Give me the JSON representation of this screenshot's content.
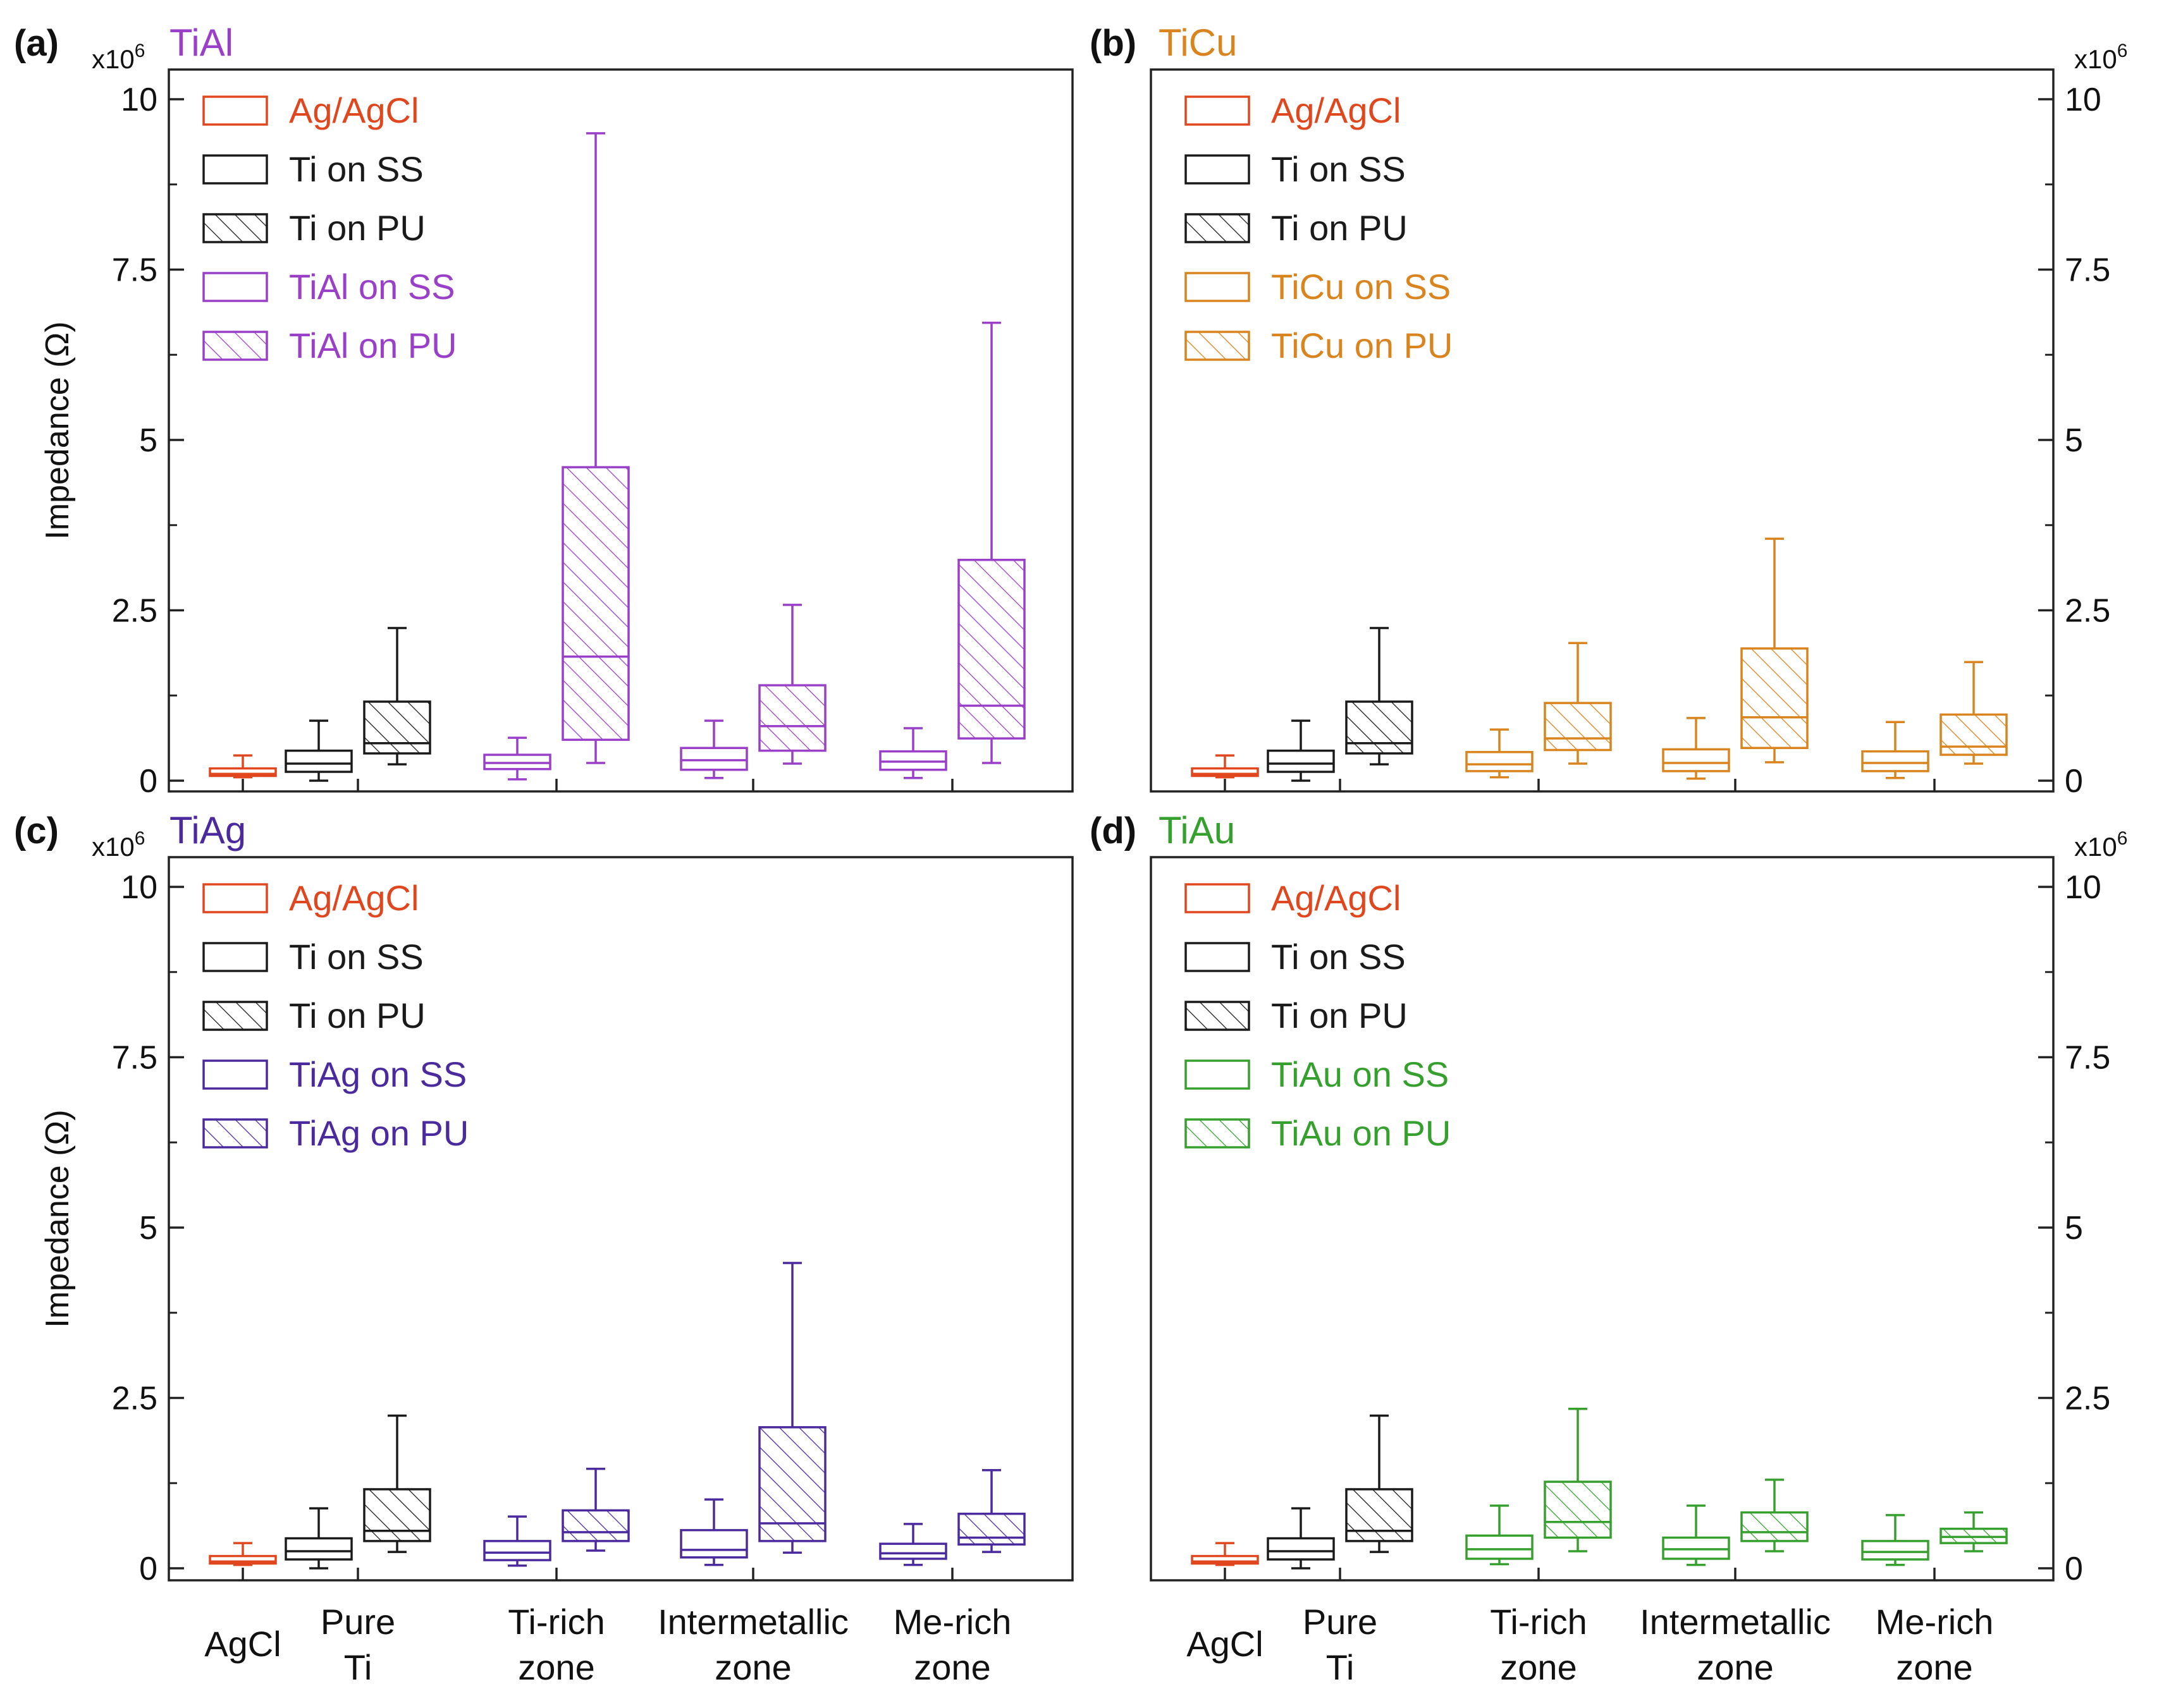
{
  "figure": {
    "y_axis_label": "Impedance (Ω)",
    "exponent_base": "x10",
    "exponent_power": "6",
    "y_ticks": [
      0,
      2.5,
      5,
      7.5,
      10
    ],
    "y_tick_labels": [
      "0",
      "2.5",
      "5",
      "7.5",
      "10"
    ],
    "x_categories": [
      {
        "id": "agcl",
        "lines": [
          "AgCl"
        ]
      },
      {
        "id": "pure_ti",
        "lines": [
          "Pure",
          "Ti"
        ]
      },
      {
        "id": "ti_rich",
        "lines": [
          "Ti-rich",
          "zone"
        ]
      },
      {
        "id": "intermetallic",
        "lines": [
          "Intermetallic",
          "zone"
        ]
      },
      {
        "id": "me_rich",
        "lines": [
          "Me-rich",
          "zone"
        ]
      }
    ],
    "colors": {
      "agcl": "#E0471E",
      "ti": "#1a1a1a",
      "TiAl": "#9A3FC8",
      "TiCu": "#D9841E",
      "TiAg": "#4B2A9E",
      "TiAu": "#36A02E"
    }
  },
  "chart_data": [
    {
      "panel": "a",
      "panel_label": "(a)",
      "title": "TiAl",
      "metal": "TiAl",
      "type": "box",
      "ylabel": "Impedance (Ω)",
      "y_scale": "x10^6",
      "ylim": [
        -0.2,
        10.6
      ],
      "legend": [
        "Ag/AgCl",
        "Ti on SS",
        "Ti on PU",
        "TiAl on SS",
        "TiAl on PU"
      ],
      "boxes": [
        {
          "series": "Ag/AgCl",
          "category": "AgCl",
          "min": 0.05,
          "q1": 0.07,
          "median": 0.1,
          "q3": 0.18,
          "max": 0.37
        },
        {
          "series": "Ti on SS",
          "category": "Pure Ti",
          "min": 0.0,
          "q1": 0.13,
          "median": 0.25,
          "q3": 0.44,
          "max": 0.88
        },
        {
          "series": "Ti on PU",
          "category": "Pure Ti",
          "min": 0.24,
          "q1": 0.4,
          "median": 0.55,
          "q3": 1.16,
          "max": 2.24
        },
        {
          "series": "TiAl on SS",
          "category": "Ti-rich zone",
          "min": 0.02,
          "q1": 0.17,
          "median": 0.26,
          "q3": 0.38,
          "max": 0.63
        },
        {
          "series": "TiAl on PU",
          "category": "Ti-rich zone",
          "min": 0.26,
          "q1": 0.6,
          "median": 1.82,
          "q3": 4.6,
          "max": 9.5
        },
        {
          "series": "TiAl on SS",
          "category": "Intermetallic zone",
          "min": 0.04,
          "q1": 0.16,
          "median": 0.3,
          "q3": 0.48,
          "max": 0.88
        },
        {
          "series": "TiAl on PU",
          "category": "Intermetallic zone",
          "min": 0.25,
          "q1": 0.44,
          "median": 0.8,
          "q3": 1.4,
          "max": 2.58
        },
        {
          "series": "TiAl on SS",
          "category": "Me-rich zone",
          "min": 0.04,
          "q1": 0.16,
          "median": 0.28,
          "q3": 0.43,
          "max": 0.77
        },
        {
          "series": "TiAl on PU",
          "category": "Me-rich zone",
          "min": 0.26,
          "q1": 0.62,
          "median": 1.1,
          "q3": 3.24,
          "max": 6.72
        }
      ]
    },
    {
      "panel": "b",
      "panel_label": "(b)",
      "title": "TiCu",
      "metal": "TiCu",
      "type": "box",
      "ylabel": "Impedance (Ω)",
      "y_scale": "x10^6",
      "ylim": [
        -0.2,
        10.6
      ],
      "legend": [
        "Ag/AgCl",
        "Ti on SS",
        "Ti on PU",
        "TiCu on SS",
        "TiCu on PU"
      ],
      "boxes": [
        {
          "series": "Ag/AgCl",
          "category": "AgCl",
          "min": 0.05,
          "q1": 0.07,
          "median": 0.1,
          "q3": 0.18,
          "max": 0.37
        },
        {
          "series": "Ti on SS",
          "category": "Pure Ti",
          "min": 0.0,
          "q1": 0.13,
          "median": 0.25,
          "q3": 0.44,
          "max": 0.88
        },
        {
          "series": "Ti on PU",
          "category": "Pure Ti",
          "min": 0.24,
          "q1": 0.4,
          "median": 0.55,
          "q3": 1.16,
          "max": 2.24
        },
        {
          "series": "TiCu on SS",
          "category": "Ti-rich zone",
          "min": 0.05,
          "q1": 0.14,
          "median": 0.24,
          "q3": 0.42,
          "max": 0.75
        },
        {
          "series": "TiCu on PU",
          "category": "Ti-rich zone",
          "min": 0.25,
          "q1": 0.45,
          "median": 0.62,
          "q3": 1.14,
          "max": 2.02
        },
        {
          "series": "TiCu on SS",
          "category": "Intermetallic zone",
          "min": 0.03,
          "q1": 0.14,
          "median": 0.26,
          "q3": 0.46,
          "max": 0.92
        },
        {
          "series": "TiCu on PU",
          "category": "Intermetallic zone",
          "min": 0.27,
          "q1": 0.48,
          "median": 0.93,
          "q3": 1.94,
          "max": 3.55
        },
        {
          "series": "TiCu on SS",
          "category": "Me-rich zone",
          "min": 0.04,
          "q1": 0.14,
          "median": 0.26,
          "q3": 0.43,
          "max": 0.86
        },
        {
          "series": "TiCu on PU",
          "category": "Me-rich zone",
          "min": 0.25,
          "q1": 0.38,
          "median": 0.5,
          "q3": 0.97,
          "max": 1.74
        }
      ]
    },
    {
      "panel": "c",
      "panel_label": "(c)",
      "title": "TiAg",
      "metal": "TiAg",
      "type": "box",
      "ylabel": "Impedance (Ω)",
      "y_scale": "x10^6",
      "ylim": [
        -0.2,
        10.6
      ],
      "legend": [
        "Ag/AgCl",
        "Ti on SS",
        "Ti on PU",
        "TiAg on SS",
        "TiAg on PU"
      ],
      "boxes": [
        {
          "series": "Ag/AgCl",
          "category": "AgCl",
          "min": 0.05,
          "q1": 0.07,
          "median": 0.1,
          "q3": 0.18,
          "max": 0.37
        },
        {
          "series": "Ti on SS",
          "category": "Pure Ti",
          "min": 0.0,
          "q1": 0.13,
          "median": 0.25,
          "q3": 0.44,
          "max": 0.88
        },
        {
          "series": "Ti on PU",
          "category": "Pure Ti",
          "min": 0.24,
          "q1": 0.4,
          "median": 0.55,
          "q3": 1.16,
          "max": 2.24
        },
        {
          "series": "TiAg on SS",
          "category": "Ti-rich zone",
          "min": 0.04,
          "q1": 0.12,
          "median": 0.23,
          "q3": 0.4,
          "max": 0.76
        },
        {
          "series": "TiAg on PU",
          "category": "Ti-rich zone",
          "min": 0.26,
          "q1": 0.4,
          "median": 0.53,
          "q3": 0.85,
          "max": 1.46
        },
        {
          "series": "TiAg on SS",
          "category": "Intermetallic zone",
          "min": 0.05,
          "q1": 0.16,
          "median": 0.27,
          "q3": 0.56,
          "max": 1.01
        },
        {
          "series": "TiAg on PU",
          "category": "Intermetallic zone",
          "min": 0.23,
          "q1": 0.4,
          "median": 0.66,
          "q3": 2.07,
          "max": 4.48
        },
        {
          "series": "TiAg on SS",
          "category": "Me-rich zone",
          "min": 0.05,
          "q1": 0.14,
          "median": 0.22,
          "q3": 0.36,
          "max": 0.65
        },
        {
          "series": "TiAg on PU",
          "category": "Me-rich zone",
          "min": 0.24,
          "q1": 0.35,
          "median": 0.45,
          "q3": 0.8,
          "max": 1.44
        }
      ]
    },
    {
      "panel": "d",
      "panel_label": "(d)",
      "title": "TiAu",
      "metal": "TiAu",
      "type": "box",
      "ylabel": "Impedance (Ω)",
      "y_scale": "x10^6",
      "ylim": [
        -0.2,
        10.6
      ],
      "legend": [
        "Ag/AgCl",
        "Ti on SS",
        "Ti on PU",
        "TiAu on SS",
        "TiAu on PU"
      ],
      "boxes": [
        {
          "series": "Ag/AgCl",
          "category": "AgCl",
          "min": 0.05,
          "q1": 0.07,
          "median": 0.1,
          "q3": 0.18,
          "max": 0.37
        },
        {
          "series": "Ti on SS",
          "category": "Pure Ti",
          "min": 0.0,
          "q1": 0.13,
          "median": 0.25,
          "q3": 0.44,
          "max": 0.88
        },
        {
          "series": "Ti on PU",
          "category": "Pure Ti",
          "min": 0.24,
          "q1": 0.4,
          "median": 0.55,
          "q3": 1.16,
          "max": 2.24
        },
        {
          "series": "TiAu on SS",
          "category": "Ti-rich zone",
          "min": 0.06,
          "q1": 0.14,
          "median": 0.28,
          "q3": 0.48,
          "max": 0.92
        },
        {
          "series": "TiAu on PU",
          "category": "Ti-rich zone",
          "min": 0.25,
          "q1": 0.45,
          "median": 0.68,
          "q3": 1.27,
          "max": 2.34
        },
        {
          "series": "TiAu on SS",
          "category": "Intermetallic zone",
          "min": 0.05,
          "q1": 0.14,
          "median": 0.28,
          "q3": 0.45,
          "max": 0.92
        },
        {
          "series": "TiAu on PU",
          "category": "Intermetallic zone",
          "min": 0.25,
          "q1": 0.4,
          "median": 0.53,
          "q3": 0.82,
          "max": 1.3
        },
        {
          "series": "TiAu on SS",
          "category": "Me-rich zone",
          "min": 0.05,
          "q1": 0.13,
          "median": 0.24,
          "q3": 0.4,
          "max": 0.78
        },
        {
          "series": "TiAu on PU",
          "category": "Me-rich zone",
          "min": 0.25,
          "q1": 0.37,
          "median": 0.46,
          "q3": 0.58,
          "max": 0.82
        }
      ]
    }
  ]
}
